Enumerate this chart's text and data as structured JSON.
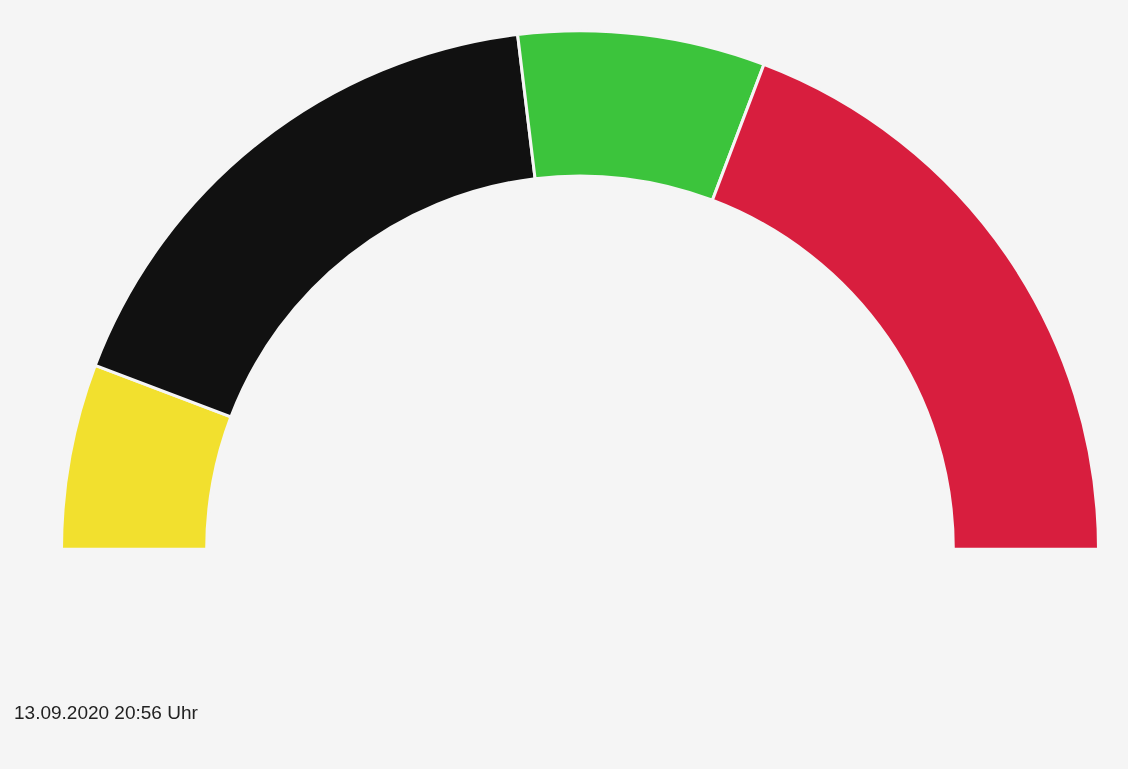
{
  "chart_data": {
    "type": "donut",
    "categories": [
      null,
      null,
      null,
      null
    ],
    "values": [
      11.54,
      34.62,
      15.38,
      38.46
    ],
    "colors": [
      "#f2e02e",
      "#111111",
      "#3cc43c",
      "#d81e3e"
    ],
    "annotations": [
      "13.09.2020 20:56 Uhr"
    ]
  }
}
